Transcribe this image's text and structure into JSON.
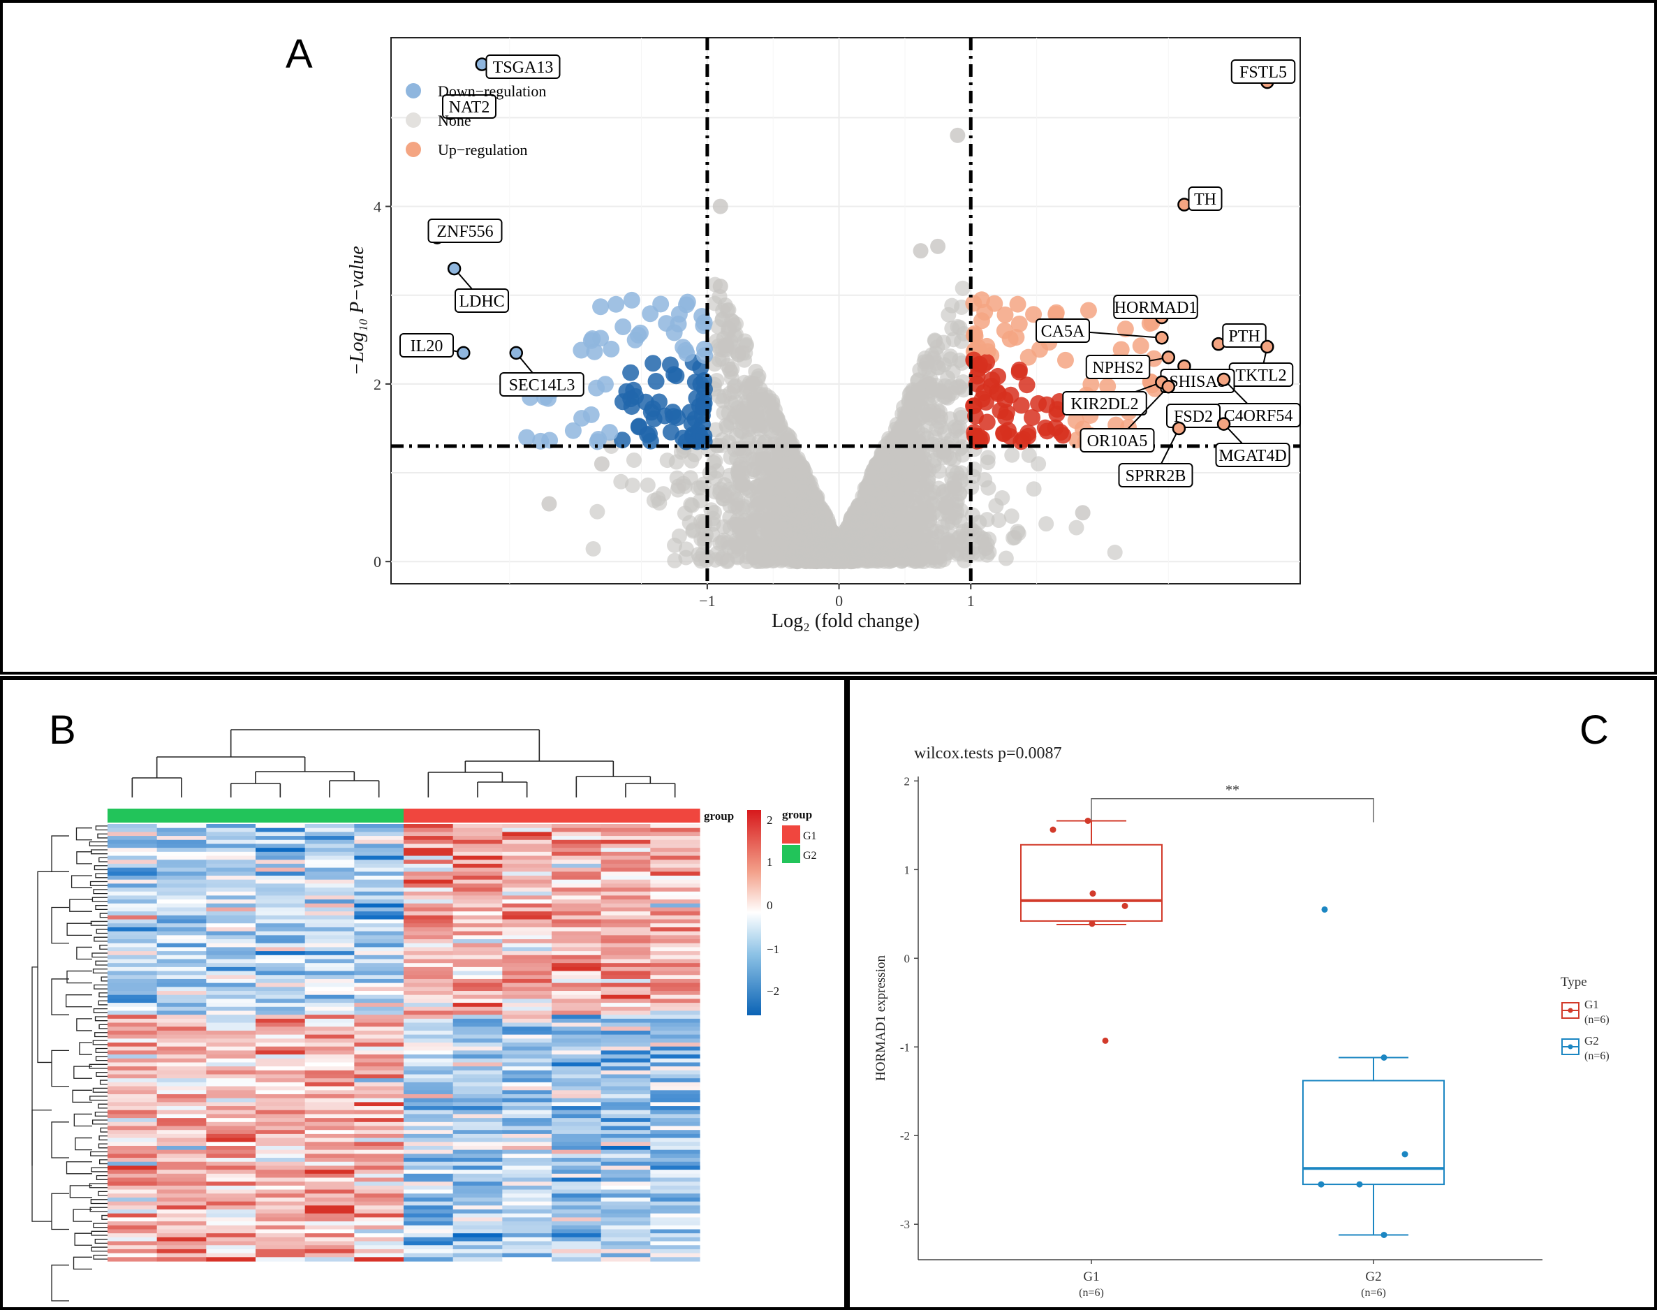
{
  "panels": {
    "a_letter": "A",
    "b_letter": "B",
    "c_letter": "C"
  },
  "colors": {
    "down": "#2166ac",
    "down_light": "#8fb6de",
    "up": "#d7301f",
    "up_light": "#f4a582",
    "none": "#c8c6c3",
    "g1": "#d23a2a",
    "g2": "#1b86c2",
    "bar_g1": "#f0463e",
    "bar_g2": "#22c45a"
  },
  "volcano": {
    "xlabel": "Log₂ (fold change)",
    "ylabel": "−Log₁₀ P−value",
    "legend": [
      "Down−regulation",
      "None",
      "Up−regulation"
    ],
    "chart_data": {
      "type": "scatter",
      "xlabel": "Log₂ (fold change)",
      "ylabel": "−Log₁₀ P−value",
      "x_ticks": [
        "−1",
        "0",
        "1"
      ],
      "y_ticks": [
        "0",
        "2",
        "4"
      ],
      "xlim": [
        -3.4,
        3.5
      ],
      "ylim": [
        -0.25,
        5.9
      ],
      "thresholds": {
        "log2fc": [
          -1,
          1
        ],
        "neg_log10_p": 1.3
      },
      "labeled_points": [
        {
          "gene": "TSGA13",
          "x": -2.71,
          "y": 5.6,
          "class": "down"
        },
        {
          "gene": "NAT2",
          "x": -2.95,
          "y": 5.05,
          "class": "down"
        },
        {
          "gene": "ZNF556",
          "x": -3.05,
          "y": 3.65,
          "class": "down"
        },
        {
          "gene": "LDHC",
          "x": -2.92,
          "y": 3.3,
          "class": "down"
        },
        {
          "gene": "IL20",
          "x": -2.85,
          "y": 2.35,
          "class": "down"
        },
        {
          "gene": "SEC14L3",
          "x": -2.45,
          "y": 2.35,
          "class": "down"
        },
        {
          "gene": "FSTL5",
          "x": 3.25,
          "y": 5.4,
          "class": "up"
        },
        {
          "gene": "TH",
          "x": 2.62,
          "y": 4.02,
          "class": "up"
        },
        {
          "gene": "HORMAD1",
          "x": 2.45,
          "y": 2.75,
          "class": "up"
        },
        {
          "gene": "CA5A",
          "x": 2.45,
          "y": 2.52,
          "class": "up"
        },
        {
          "gene": "PTH",
          "x": 2.88,
          "y": 2.45,
          "class": "up"
        },
        {
          "gene": "TKTL2",
          "x": 3.25,
          "y": 2.42,
          "class": "up"
        },
        {
          "gene": "NPHS2",
          "x": 2.5,
          "y": 2.3,
          "class": "up"
        },
        {
          "gene": "SHISA8",
          "x": 2.62,
          "y": 2.2,
          "class": "up"
        },
        {
          "gene": "KIR2DL2",
          "x": 2.45,
          "y": 2.02,
          "class": "up"
        },
        {
          "gene": "C4ORF54",
          "x": 2.92,
          "y": 2.05,
          "class": "up"
        },
        {
          "gene": "FSD2",
          "x": 2.6,
          "y": 1.65,
          "class": "up"
        },
        {
          "gene": "OR10A5",
          "x": 2.5,
          "y": 1.97,
          "class": "up"
        },
        {
          "gene": "MGAT4D",
          "x": 2.92,
          "y": 1.55,
          "class": "up"
        },
        {
          "gene": "SPRR2B",
          "x": 2.58,
          "y": 1.5,
          "class": "up"
        }
      ]
    }
  },
  "heatmap": {
    "legend_bar_title": "group",
    "group_title": "group",
    "groups": [
      "G1",
      "G2"
    ],
    "scale_ticks": [
      "2",
      "1",
      "0",
      "−1",
      "−2"
    ],
    "chart_data": {
      "type": "heatmap",
      "columns": 12,
      "column_groups": [
        "G2",
        "G2",
        "G2",
        "G2",
        "G2",
        "G2",
        "G1",
        "G1",
        "G1",
        "G1",
        "G1",
        "G1"
      ],
      "rows": 110,
      "scale_range": [
        -2.5,
        2.5
      ]
    }
  },
  "boxplot": {
    "title": "wilcox.tests p=0.0087",
    "ylabel": "HORMAD1 expression",
    "sig": "**",
    "legend_title": "Type",
    "legend_items": [
      {
        "name": "G1",
        "n": "(n=6)"
      },
      {
        "name": "G2",
        "n": "(n=6)"
      }
    ],
    "categories": [
      {
        "name": "G1",
        "n": "(n=6)"
      },
      {
        "name": "G2",
        "n": "(n=6)"
      }
    ],
    "y_ticks": [
      "2",
      "1",
      "0",
      "-1",
      "-2",
      "-3"
    ],
    "chart_data": {
      "type": "box",
      "title": "wilcox.tests p=0.0087",
      "ylabel": "HORMAD1 expression",
      "ylim": [
        -3.4,
        2.05
      ],
      "categories": [
        "G1",
        "G2"
      ],
      "series": [
        {
          "name": "G1",
          "min": 0.38,
          "q1": 0.42,
          "median": 0.65,
          "q3": 1.28,
          "max": 1.55,
          "outliers": [
            -0.93
          ],
          "points": [
            1.45,
            1.55,
            0.73,
            0.59,
            0.39,
            -0.93
          ]
        },
        {
          "name": "G2",
          "min": -3.12,
          "q1": -2.55,
          "median": -2.37,
          "q3": -1.38,
          "max": -1.12,
          "outliers": [
            0.55
          ],
          "points": [
            0.55,
            -1.12,
            -2.21,
            -2.55,
            -2.55,
            -3.12
          ]
        }
      ]
    }
  }
}
